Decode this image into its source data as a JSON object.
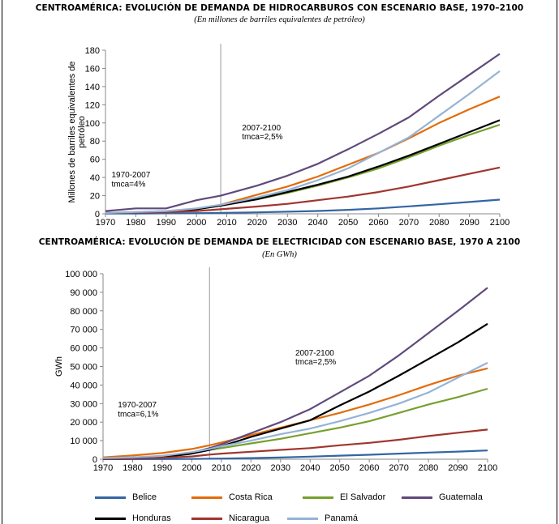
{
  "charts": [
    {
      "title": "CENTROAMÉRICA: EVOLUCIÓN DE DEMANDA DE HIDROCARBUROS CON ESCENARIO BASE, 1970–2100",
      "subtitle": "(En millones de barriles equivalentes de petróleo)"
    },
    {
      "title": "CENTROAMÉRICA: EVOLUCIÓN DE DEMANDA DE ELECTRICIDAD CON ESCENARIO BASE, 1970 A 2100",
      "subtitle": "(En GWh)"
    }
  ],
  "legend": {
    "belice": "Belice",
    "costa_rica": "Costa Rica",
    "el_salvador": "El Salvador",
    "guatemala": "Guatemala",
    "honduras": "Honduras",
    "nicaragua": "Nicaragua",
    "panama": "Panamá"
  },
  "colors": {
    "Belice": "#3465a4",
    "Costa Rica": "#e36c09",
    "El Salvador": "#77a02e",
    "Guatemala": "#604a7b",
    "Honduras": "#000000",
    "Nicaragua": "#a0352e",
    "Panamá": "#95b3d7"
  },
  "chart_data": [
    {
      "type": "line",
      "title": "CENTROAMÉRICA: EVOLUCIÓN DE DEMANDA DE HIDROCARBUROS CON ESCENARIO BASE, 1970–2100",
      "subtitle": "(En millones de barriles equivalentes de petróleo)",
      "xlabel": "",
      "ylabel": "Millones de barriles equivalentes de petróleo",
      "xlim": [
        1970,
        2100
      ],
      "ylim": [
        0,
        180
      ],
      "xticks": [
        1970,
        1980,
        1990,
        2000,
        2010,
        2020,
        2030,
        2040,
        2050,
        2060,
        2070,
        2080,
        2090,
        2100
      ],
      "yticks": [
        0,
        20,
        40,
        60,
        80,
        100,
        120,
        140,
        160,
        180
      ],
      "ytick_labels": [
        "0",
        "20",
        "40",
        "60",
        "80",
        "100",
        "120",
        "140",
        "160",
        "180"
      ],
      "vline": 2008,
      "grid": false,
      "annotations": [
        {
          "text": "1970-2007",
          "x": 1972,
          "y": 40
        },
        {
          "text": "tmca=4%",
          "x": 1972,
          "y": 30
        },
        {
          "text": "2007-2100",
          "x": 2015,
          "y": 92
        },
        {
          "text": "tmca=2,5%",
          "x": 2015,
          "y": 82
        }
      ],
      "x": [
        1970,
        1980,
        1990,
        2000,
        2008,
        2020,
        2030,
        2040,
        2050,
        2060,
        2070,
        2080,
        2090,
        2100
      ],
      "series": [
        {
          "name": "Belice",
          "values": [
            0.3,
            0.4,
            0.5,
            0.7,
            1.0,
            1.6,
            2.3,
            3.1,
            4.4,
            6.0,
            8.2,
            10.5,
            13.0,
            15.6
          ]
        },
        {
          "name": "Costa Rica",
          "values": [
            1.0,
            2.0,
            3.0,
            5.5,
            10,
            21,
            30,
            41,
            54,
            67,
            83,
            100,
            115,
            129
          ]
        },
        {
          "name": "El Salvador",
          "values": [
            1.0,
            1.5,
            2.5,
            5.0,
            9,
            16,
            23,
            31,
            40,
            50,
            62,
            75,
            87,
            98
          ]
        },
        {
          "name": "Guatemala",
          "values": [
            3.0,
            6.0,
            6.0,
            15,
            20,
            31,
            42,
            55,
            71,
            88,
            106,
            130,
            153,
            176
          ]
        },
        {
          "name": "Honduras",
          "values": [
            1.0,
            1.5,
            2.0,
            5.0,
            9,
            16,
            24,
            32,
            41,
            52,
            64,
            77,
            90,
            103
          ]
        },
        {
          "name": "Nicaragua",
          "values": [
            1.0,
            1.5,
            2.0,
            3.0,
            5,
            8,
            11,
            15,
            19,
            24,
            30,
            37,
            44,
            51
          ]
        },
        {
          "name": "Panamá",
          "values": [
            1.0,
            2.0,
            3.0,
            6.0,
            10,
            18,
            26,
            37,
            50,
            67,
            84,
            108,
            132,
            157
          ]
        }
      ]
    },
    {
      "type": "line",
      "title": "CENTROAMÉRICA: EVOLUCIÓN DE DEMANDA DE ELECTRICIDAD CON ESCENARIO BASE, 1970 A 2100",
      "subtitle": "(En GWh)",
      "xlabel": "",
      "ylabel": "GWh",
      "xlim": [
        1970,
        2100
      ],
      "ylim": [
        0,
        100000
      ],
      "xticks": [
        1970,
        1980,
        1990,
        2000,
        2010,
        2020,
        2030,
        2040,
        2050,
        2060,
        2070,
        2080,
        2090,
        2100
      ],
      "yticks": [
        0,
        10000,
        20000,
        30000,
        40000,
        50000,
        60000,
        70000,
        80000,
        90000,
        100000
      ],
      "ytick_labels": [
        "0",
        "10 000",
        "20 000",
        "30 000",
        "40 000",
        "50 000",
        "60 000",
        "70 000",
        "80 000",
        "90 000",
        "100 000"
      ],
      "vline": 2006,
      "grid": false,
      "annotations": [
        {
          "text": "1970-2007",
          "x": 1975,
          "y": 28000
        },
        {
          "text": "tmca=6,1%",
          "x": 1975,
          "y": 23000
        },
        {
          "text": "2007-2100",
          "x": 2035,
          "y": 56000
        },
        {
          "text": "tmca=2,5%",
          "x": 2035,
          "y": 51000
        }
      ],
      "x": [
        1970,
        1980,
        1990,
        2000,
        2006,
        2010,
        2020,
        2030,
        2040,
        2050,
        2060,
        2070,
        2080,
        2090,
        2100
      ],
      "series": [
        {
          "name": "Belice",
          "values": [
            30,
            50,
            80,
            150,
            250,
            330,
            600,
            900,
            1400,
            1900,
            2400,
            3000,
            3600,
            4100,
            4700
          ]
        },
        {
          "name": "Costa Rica",
          "values": [
            1000,
            2000,
            3300,
            5500,
            7500,
            9000,
            13000,
            17000,
            21000,
            25000,
            29500,
            34500,
            40000,
            45000,
            49000
          ]
        },
        {
          "name": "El Salvador",
          "values": [
            500,
            800,
            1500,
            3500,
            5000,
            6000,
            8500,
            11000,
            14000,
            17000,
            20500,
            25000,
            29500,
            33500,
            38000
          ]
        },
        {
          "name": "Guatemala",
          "values": [
            400,
            800,
            1500,
            3500,
            6000,
            8000,
            14000,
            20000,
            27000,
            36000,
            45000,
            56000,
            68000,
            80000,
            92500
          ]
        },
        {
          "name": "Honduras",
          "values": [
            200,
            500,
            1000,
            3000,
            5000,
            7000,
            12000,
            16500,
            21000,
            29000,
            36500,
            45000,
            54000,
            63000,
            73000
          ]
        },
        {
          "name": "Nicaragua",
          "values": [
            300,
            500,
            800,
            1500,
            2500,
            3000,
            4000,
            5000,
            6000,
            7500,
            8800,
            10500,
            12500,
            14300,
            16000
          ]
        },
        {
          "name": "Panamá",
          "values": [
            600,
            1000,
            1800,
            3800,
            5500,
            7000,
            10000,
            13500,
            16500,
            20500,
            25000,
            30000,
            36000,
            44000,
            52000
          ]
        }
      ]
    }
  ]
}
